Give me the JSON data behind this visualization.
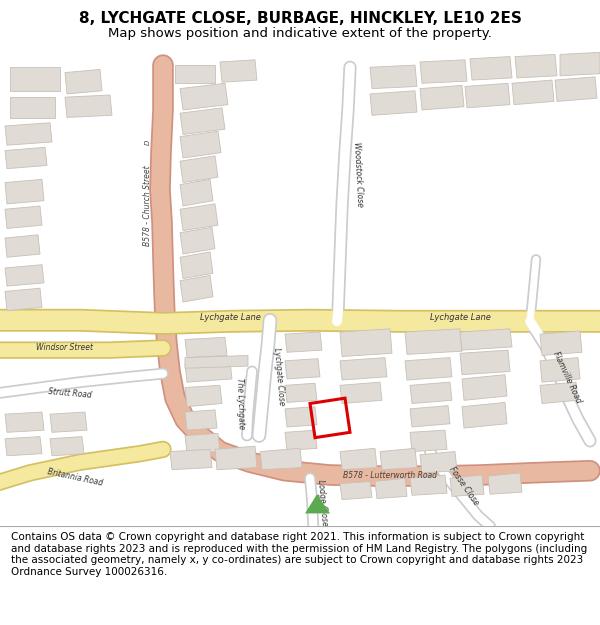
{
  "title": "8, LYCHGATE CLOSE, BURBAGE, HINCKLEY, LE10 2ES",
  "subtitle": "Map shows position and indicative extent of the property.",
  "footer": "Contains OS data © Crown copyright and database right 2021. This information is subject to Crown copyright and database rights 2023 and is reproduced with the permission of HM Land Registry. The polygons (including the associated geometry, namely x, y co-ordinates) are subject to Crown copyright and database rights 2023 Ordnance Survey 100026316.",
  "map_bg": "#f8f8f8",
  "building_color": "#e0dbd5",
  "building_edge": "#c8c0b8",
  "road_yellow_fill": "#f5e9a0",
  "road_yellow_edge": "#d4c060",
  "road_orange_fill": "#e8b8a0",
  "road_orange_edge": "#d09080",
  "road_white": "#ffffff",
  "road_white_edge": "#cccccc",
  "highlight_red": "#dd0000",
  "green_triangle": "#5aaa50",
  "title_fontsize": 11,
  "subtitle_fontsize": 9.5,
  "footer_fontsize": 7.5
}
